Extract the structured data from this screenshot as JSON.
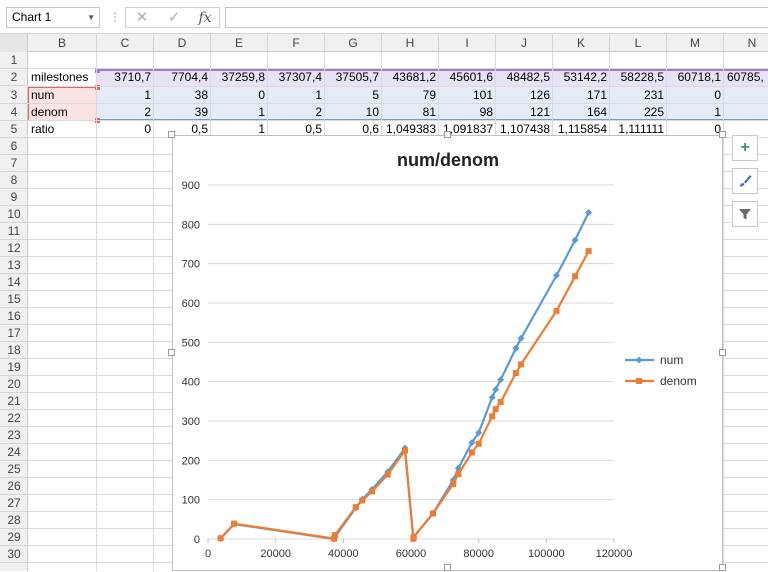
{
  "formula_bar": {
    "name_box_value": "Chart 1",
    "name_box_arrow_icon": "dropdown-arrow-icon",
    "separator": "⋮",
    "cancel_icon": "cancel-x-icon",
    "enter_icon": "check-icon",
    "function_label": "fx",
    "formula_value": ""
  },
  "columns": [
    "B",
    "C",
    "D",
    "E",
    "F",
    "G",
    "H",
    "I",
    "J",
    "K",
    "L",
    "M",
    "N"
  ],
  "rows": [
    "1",
    "2",
    "3",
    "4",
    "5",
    "6",
    "7",
    "8",
    "9",
    "10",
    "11",
    "12",
    "13",
    "14",
    "15",
    "16",
    "17",
    "18",
    "19",
    "20",
    "21",
    "22",
    "23",
    "24",
    "25",
    "26",
    "27",
    "28",
    "29",
    "30"
  ],
  "sheet": {
    "row2": {
      "label": "milestones",
      "values": [
        "3710,7",
        "7704,4",
        "37259,8",
        "37307,4",
        "37505,7",
        "43681,2",
        "45601,6",
        "48482,5",
        "53142,2",
        "58228,5",
        "60718,1",
        "60785,"
      ]
    },
    "row3": {
      "label": "num",
      "values": [
        "1",
        "38",
        "0",
        "1",
        "5",
        "79",
        "101",
        "126",
        "171",
        "231",
        "0",
        ""
      ]
    },
    "row4": {
      "label": "denom",
      "values": [
        "2",
        "39",
        "1",
        "2",
        "10",
        "81",
        "98",
        "121",
        "164",
        "225",
        "1",
        ""
      ]
    },
    "row5": {
      "label": "ratio",
      "values": [
        "0",
        "0,5",
        "1",
        "0,5",
        "0,6",
        "1,049383",
        "1,091837",
        "1,107438",
        "1,115854",
        "1,111111",
        "0",
        ""
      ]
    }
  },
  "side_buttons": {
    "add_icon": "plus-icon",
    "style_icon": "paintbrush-icon",
    "filter_icon": "funnel-icon"
  },
  "colors": {
    "num_series": "#5b9bd5",
    "denom_series": "#ed7d31",
    "gridline": "#d9d9d9"
  },
  "chart_data": {
    "type": "scatter",
    "title": "num/denom",
    "xlabel": "",
    "ylabel": "",
    "xlim": [
      0,
      120000
    ],
    "ylim": [
      0,
      900
    ],
    "x_ticks": [
      "0",
      "20000",
      "40000",
      "60000",
      "80000",
      "100000",
      "120000"
    ],
    "y_ticks": [
      "0",
      "100",
      "200",
      "300",
      "400",
      "500",
      "600",
      "700",
      "800",
      "900"
    ],
    "grid": true,
    "legend_position": "right",
    "series": [
      {
        "name": "num",
        "marker": "diamond",
        "points": [
          [
            3710.7,
            1
          ],
          [
            7704.4,
            38
          ],
          [
            37259.8,
            0
          ],
          [
            37307.4,
            1
          ],
          [
            37505.7,
            5
          ],
          [
            43681.2,
            79
          ],
          [
            45601.6,
            101
          ],
          [
            48482.5,
            126
          ],
          [
            53142.2,
            171
          ],
          [
            58228.5,
            231
          ],
          [
            60718.1,
            0
          ],
          [
            60785,
            5
          ],
          [
            66500,
            65
          ],
          [
            72500,
            150
          ],
          [
            74000,
            180
          ],
          [
            78000,
            245
          ],
          [
            80000,
            270
          ],
          [
            84000,
            360
          ],
          [
            85000,
            380
          ],
          [
            86500,
            405
          ],
          [
            91000,
            485
          ],
          [
            92500,
            510
          ],
          [
            103000,
            670
          ],
          [
            108500,
            760
          ],
          [
            112500,
            830
          ]
        ]
      },
      {
        "name": "denom",
        "marker": "square",
        "points": [
          [
            3710.7,
            2
          ],
          [
            7704.4,
            39
          ],
          [
            37259.8,
            1
          ],
          [
            37307.4,
            2
          ],
          [
            37505.7,
            10
          ],
          [
            43681.2,
            81
          ],
          [
            45601.6,
            98
          ],
          [
            48482.5,
            121
          ],
          [
            53142.2,
            164
          ],
          [
            58228.5,
            225
          ],
          [
            60718.1,
            1
          ],
          [
            60785,
            5
          ],
          [
            66500,
            65
          ],
          [
            72500,
            140
          ],
          [
            74000,
            165
          ],
          [
            78000,
            220
          ],
          [
            80000,
            242
          ],
          [
            84000,
            312
          ],
          [
            85000,
            330
          ],
          [
            86500,
            348
          ],
          [
            91000,
            422
          ],
          [
            92500,
            444
          ],
          [
            103000,
            580
          ],
          [
            108500,
            668
          ],
          [
            112500,
            732
          ]
        ]
      }
    ]
  }
}
